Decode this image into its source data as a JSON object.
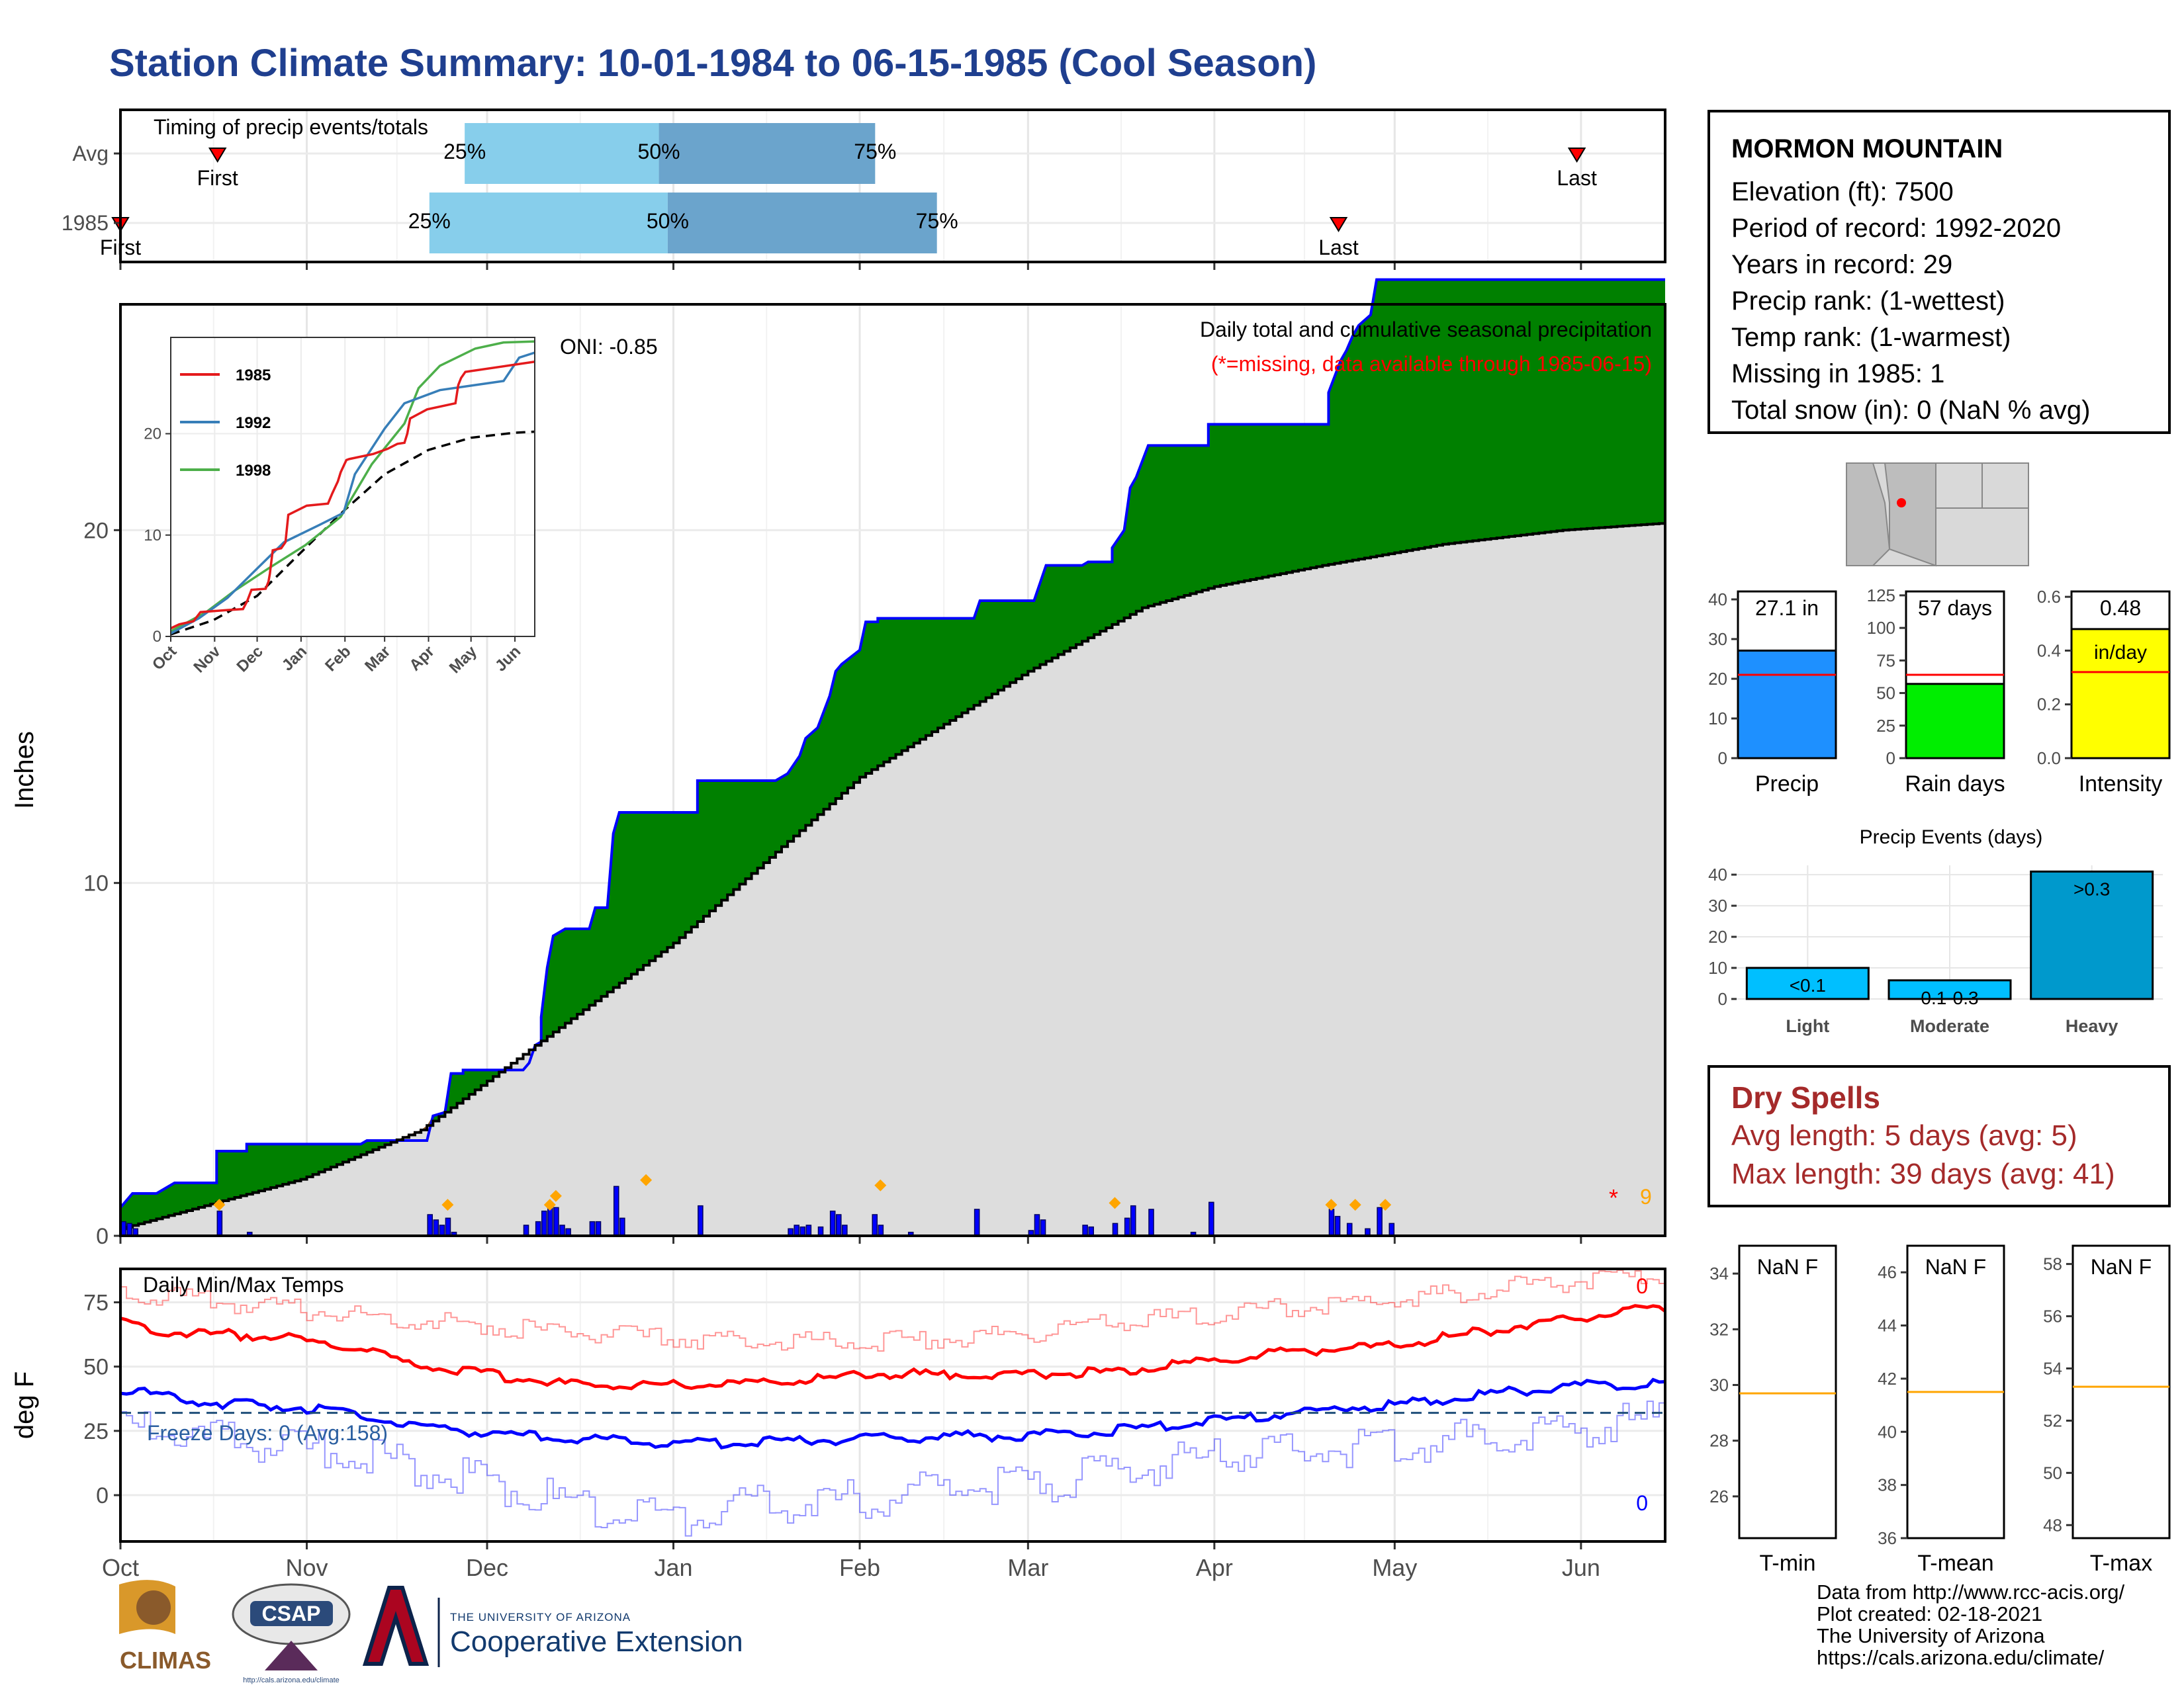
{
  "title": "Station Climate Summary: 10-01-1984 to 06-15-1985 (Cool Season)",
  "colors": {
    "title": "#1f3f8f",
    "cum_fill": "#008000",
    "deficit_fill": "#8B5A2B",
    "normal_fill": "#dddddd",
    "daily_bar": "#0000ff",
    "max_line": "#ff0000",
    "min_line": "#0000ff",
    "orange": "#ffa500",
    "dry": "#a52a2a"
  },
  "timing": {
    "title": "Timing of precip events/totals",
    "rows": [
      {
        "label": "Avg",
        "p25": "25%",
        "p50": "50%",
        "p75": "75%",
        "first": "First",
        "last": "Last",
        "x25": 78,
        "x50": 122,
        "x75": 171,
        "xfirst": 22,
        "xlast": 330
      },
      {
        "label": "1985",
        "p25": "25%",
        "p50": "50%",
        "p75": "75%",
        "first": "First",
        "last": "Last",
        "x25": 70,
        "x50": 124,
        "x75": 185,
        "xfirst": 0,
        "xlast": 276
      }
    ]
  },
  "month_labels": [
    "Oct",
    "Nov",
    "Dec",
    "Jan",
    "Feb",
    "Mar",
    "Apr",
    "May",
    "Jun"
  ],
  "month_starts": [
    0,
    31,
    61,
    92,
    123,
    151,
    182,
    212,
    243
  ],
  "precip_panel": {
    "ylabel": "Inches",
    "yticks": [
      0,
      10,
      20
    ],
    "ymax": 26.4,
    "caption": "Daily total and cumulative seasonal precipitation",
    "missing_note": "(*=missing, data available through 1985-06-15)",
    "oni": "ONI: -0.85",
    "missing_count": "9",
    "cumulative_steps": [
      [
        0,
        0.8
      ],
      [
        2,
        1.2
      ],
      [
        6,
        1.2
      ],
      [
        9,
        1.5
      ],
      [
        16,
        1.5
      ],
      [
        16,
        2.4
      ],
      [
        21,
        2.4
      ],
      [
        21,
        2.6
      ],
      [
        40,
        2.6
      ],
      [
        41,
        2.7
      ],
      [
        51,
        2.7
      ],
      [
        52,
        3.4
      ],
      [
        54,
        3.5
      ],
      [
        55,
        4.6
      ],
      [
        57,
        4.6
      ],
      [
        57,
        4.7
      ],
      [
        67,
        4.7
      ],
      [
        68,
        4.9
      ],
      [
        69,
        5.4
      ],
      [
        70,
        5.5
      ],
      [
        70,
        6.2
      ],
      [
        71,
        7.6
      ],
      [
        72,
        8.5
      ],
      [
        74,
        8.7
      ],
      [
        78,
        8.7
      ],
      [
        79,
        9.3
      ],
      [
        81,
        9.3
      ],
      [
        82,
        11.4
      ],
      [
        83,
        12.0
      ],
      [
        96,
        12.0
      ],
      [
        96,
        12.9
      ],
      [
        109,
        12.9
      ],
      [
        111,
        13.1
      ],
      [
        113,
        13.6
      ],
      [
        114,
        14.1
      ],
      [
        116,
        14.4
      ],
      [
        118,
        15.3
      ],
      [
        119,
        16.0
      ],
      [
        120,
        16.2
      ],
      [
        123,
        16.6
      ],
      [
        124,
        17.4
      ],
      [
        126,
        17.4
      ],
      [
        126,
        17.5
      ],
      [
        142,
        17.5
      ],
      [
        143,
        18.0
      ],
      [
        152,
        18.0
      ],
      [
        153,
        18.5
      ],
      [
        154,
        19.0
      ],
      [
        160,
        19.0
      ],
      [
        161,
        19.1
      ],
      [
        165,
        19.1
      ],
      [
        165,
        19.5
      ],
      [
        167,
        20.0
      ],
      [
        168,
        21.2
      ],
      [
        169,
        21.5
      ],
      [
        171,
        22.4
      ],
      [
        181,
        22.4
      ],
      [
        181,
        23.0
      ],
      [
        201,
        23.0
      ],
      [
        201,
        23.9
      ],
      [
        203,
        24.8
      ],
      [
        204,
        25.1
      ],
      [
        205,
        25.5
      ],
      [
        206,
        25.8
      ],
      [
        208,
        26.1
      ],
      [
        209,
        27.1
      ],
      [
        257,
        27.1
      ]
    ],
    "normal_points": [
      [
        0,
        0.2
      ],
      [
        30,
        1.6
      ],
      [
        50,
        3.0
      ],
      [
        92,
        8.3
      ],
      [
        123,
        13.0
      ],
      [
        151,
        16.0
      ],
      [
        170,
        17.8
      ],
      [
        182,
        18.4
      ],
      [
        200,
        19.0
      ],
      [
        220,
        19.6
      ],
      [
        240,
        20.0
      ],
      [
        257,
        20.2
      ]
    ],
    "daily_bars": [
      [
        0,
        0.4
      ],
      [
        1,
        0.35
      ],
      [
        2,
        0.2
      ],
      [
        16,
        0.7
      ],
      [
        21,
        0.1
      ],
      [
        51,
        0.6
      ],
      [
        52,
        0.45
      ],
      [
        53,
        0.3
      ],
      [
        54,
        0.5
      ],
      [
        55,
        0.1
      ],
      [
        67,
        0.3
      ],
      [
        69,
        0.4
      ],
      [
        70,
        0.7
      ],
      [
        71,
        0.95
      ],
      [
        72,
        0.8
      ],
      [
        73,
        0.3
      ],
      [
        74,
        0.2
      ],
      [
        78,
        0.4
      ],
      [
        79,
        0.4
      ],
      [
        82,
        1.4
      ],
      [
        83,
        0.5
      ],
      [
        96,
        0.85
      ],
      [
        111,
        0.2
      ],
      [
        112,
        0.3
      ],
      [
        113,
        0.25
      ],
      [
        114,
        0.3
      ],
      [
        116,
        0.25
      ],
      [
        118,
        0.7
      ],
      [
        119,
        0.6
      ],
      [
        120,
        0.3
      ],
      [
        125,
        0.6
      ],
      [
        126,
        0.3
      ],
      [
        131,
        0.1
      ],
      [
        142,
        0.75
      ],
      [
        151,
        0.15
      ],
      [
        152,
        0.6
      ],
      [
        153,
        0.45
      ],
      [
        160,
        0.3
      ],
      [
        161,
        0.25
      ],
      [
        165,
        0.35
      ],
      [
        167,
        0.5
      ],
      [
        168,
        0.85
      ],
      [
        171,
        0.75
      ],
      [
        178,
        0.1
      ],
      [
        181,
        0.95
      ],
      [
        201,
        0.75
      ],
      [
        202,
        0.55
      ],
      [
        204,
        0.35
      ],
      [
        207,
        0.2
      ],
      [
        209,
        0.8
      ],
      [
        211,
        0.35
      ]
    ],
    "orange_markers": [
      [
        16,
        0.88
      ],
      [
        54,
        0.88
      ],
      [
        71,
        0.88
      ],
      [
        72,
        1.13
      ],
      [
        87,
        1.58
      ],
      [
        126,
        1.43
      ],
      [
        165,
        0.93
      ],
      [
        201,
        0.88
      ],
      [
        205,
        0.88
      ],
      [
        210,
        0.88
      ]
    ]
  },
  "inset": {
    "legend": [
      {
        "name": "1985",
        "color": "#e41a1c"
      },
      {
        "name": "1992",
        "color": "#377eb8"
      },
      {
        "name": "1998",
        "color": "#4daf4a"
      }
    ],
    "yticks": [
      0,
      10,
      20
    ],
    "ymax": 29.5,
    "months": [
      "Oct",
      "Nov",
      "Dec",
      "Jan",
      "Feb",
      "Mar",
      "Apr",
      "May",
      "Jun"
    ],
    "series_1992": [
      [
        0,
        0.3
      ],
      [
        20,
        1.8
      ],
      [
        40,
        3.8
      ],
      [
        61,
        6.7
      ],
      [
        80,
        9.3
      ],
      [
        105,
        11.0
      ],
      [
        122,
        12.2
      ],
      [
        130,
        16.0
      ],
      [
        151,
        20.5
      ],
      [
        165,
        23.0
      ],
      [
        190,
        24.3
      ],
      [
        215,
        24.8
      ],
      [
        235,
        25.2
      ],
      [
        246,
        27.5
      ],
      [
        257,
        28.0
      ]
    ],
    "series_1998": [
      [
        0,
        0.5
      ],
      [
        25,
        2.4
      ],
      [
        45,
        4.5
      ],
      [
        70,
        6.8
      ],
      [
        95,
        9.0
      ],
      [
        120,
        11.8
      ],
      [
        142,
        17.0
      ],
      [
        165,
        21.0
      ],
      [
        175,
        24.5
      ],
      [
        190,
        26.7
      ],
      [
        215,
        28.4
      ],
      [
        235,
        29.0
      ],
      [
        257,
        29.1
      ]
    ],
    "normal_inset": [
      [
        0,
        0.2
      ],
      [
        30,
        1.6
      ],
      [
        61,
        4.0
      ],
      [
        92,
        8.3
      ],
      [
        123,
        12.5
      ],
      [
        151,
        16.0
      ],
      [
        182,
        18.4
      ],
      [
        212,
        19.6
      ],
      [
        243,
        20.1
      ],
      [
        257,
        20.2
      ]
    ]
  },
  "temp_panel": {
    "ylabel": "deg F",
    "yticks": [
      0,
      25,
      50,
      75
    ],
    "ymin": -18,
    "ymax": 88,
    "title": "Daily Min/Max Temps",
    "freeze_label": "Freeze Days: 0 (Avg:158)",
    "max_count": "0",
    "min_count": "0",
    "freeze_line": 32,
    "max_1985": [
      [
        0,
        67
      ],
      [
        10,
        63
      ],
      [
        25,
        62
      ],
      [
        40,
        57
      ],
      [
        50,
        50
      ],
      [
        61,
        47
      ],
      [
        75,
        43
      ],
      [
        92,
        43
      ],
      [
        110,
        44
      ],
      [
        125,
        47
      ],
      [
        140,
        47
      ],
      [
        151,
        47
      ],
      [
        165,
        48
      ],
      [
        182,
        52
      ],
      [
        195,
        56
      ],
      [
        212,
        58
      ],
      [
        230,
        65
      ],
      [
        245,
        70
      ],
      [
        257,
        73
      ]
    ],
    "min_1985": [
      [
        0,
        41
      ],
      [
        15,
        36
      ],
      [
        30,
        34
      ],
      [
        45,
        29
      ],
      [
        61,
        24
      ],
      [
        75,
        22
      ],
      [
        92,
        20
      ],
      [
        110,
        21
      ],
      [
        125,
        22
      ],
      [
        140,
        23
      ],
      [
        151,
        23
      ],
      [
        170,
        26
      ],
      [
        182,
        29
      ],
      [
        200,
        33
      ],
      [
        215,
        36
      ],
      [
        230,
        40
      ],
      [
        245,
        43
      ],
      [
        257,
        43
      ]
    ],
    "rec_max": [
      [
        0,
        79
      ],
      [
        20,
        74
      ],
      [
        40,
        70
      ],
      [
        60,
        66
      ],
      [
        75,
        63
      ],
      [
        92,
        61
      ],
      [
        110,
        60
      ],
      [
        130,
        60
      ],
      [
        150,
        63
      ],
      [
        170,
        68
      ],
      [
        190,
        72
      ],
      [
        212,
        76
      ],
      [
        235,
        82
      ],
      [
        257,
        85
      ]
    ],
    "rec_min": [
      [
        0,
        26
      ],
      [
        20,
        20
      ],
      [
        40,
        16
      ],
      [
        55,
        8
      ],
      [
        70,
        -1
      ],
      [
        85,
        -7
      ],
      [
        92,
        -10
      ],
      [
        105,
        -4
      ],
      [
        125,
        -1
      ],
      [
        140,
        3
      ],
      [
        151,
        4
      ],
      [
        165,
        9
      ],
      [
        182,
        15
      ],
      [
        200,
        17
      ],
      [
        215,
        20
      ],
      [
        235,
        24
      ],
      [
        257,
        30
      ]
    ]
  },
  "info_box": {
    "station": "MORMON MOUNTAIN",
    "lines": [
      "Elevation (ft): 7500",
      "Period of record: 1992-2020",
      "Years in record: 29",
      "Precip rank:  (1-wettest)",
      "Temp rank:  (1-warmest)",
      "Missing in 1985: 1",
      "Total snow (in): 0 (NaN % avg)"
    ]
  },
  "mini_bars": [
    {
      "label": "Precip",
      "value": 27.1,
      "value_label": "27.1 in",
      "avg": 21.0,
      "yticks": [
        0,
        10,
        20,
        30,
        40
      ],
      "ymax": 42,
      "color": "#1e90ff"
    },
    {
      "label": "Rain days",
      "value": 57,
      "value_label": "57 days",
      "avg": 64,
      "yticks": [
        0,
        25,
        50,
        75,
        100,
        125
      ],
      "ymax": 128,
      "color": "#00ee00"
    },
    {
      "label": "Intensity",
      "value": 0.48,
      "value_label": "0.48",
      "value_label2": "in/day",
      "avg": 0.32,
      "yticks": [
        0.0,
        0.2,
        0.4,
        0.6
      ],
      "ymax": 0.62,
      "color": "#ffff00"
    }
  ],
  "events": {
    "title": "Precip Events (days)",
    "categories": [
      "Light",
      "Moderate",
      "Heavy"
    ],
    "values": [
      10,
      6,
      41
    ],
    "bar_labels": [
      "<0.1",
      "0.1-0.3",
      ">0.3"
    ],
    "yticks": [
      0,
      10,
      20,
      30,
      40
    ],
    "ymax": 43
  },
  "dry_spells": {
    "title": "Dry Spells",
    "avg": "Avg length: 5 days (avg: 5)",
    "max": "Max length: 39 days (avg: 41)"
  },
  "temp_summary": [
    {
      "label": "T-min",
      "value": "NaN F",
      "avg": 29.7,
      "yticks": [
        26,
        28,
        30,
        32,
        34
      ],
      "ymin": 24.5,
      "ymax": 35
    },
    {
      "label": "T-mean",
      "value": "NaN F",
      "avg": 41.5,
      "yticks": [
        36,
        38,
        40,
        42,
        44,
        46
      ],
      "ymin": 36,
      "ymax": 47
    },
    {
      "label": "T-max",
      "value": "NaN F",
      "avg": 53.3,
      "yticks": [
        48,
        50,
        52,
        54,
        56,
        58
      ],
      "ymin": 47.5,
      "ymax": 58.7
    }
  ],
  "credits": [
    "Data from http://www.rcc-acis.org/",
    "Plot created: 02-18-2021",
    "The University of Arizona",
    "https://cals.arizona.edu/climate/"
  ],
  "logos": {
    "climas": "CLIMAS",
    "csap": "CSAP",
    "csap_url": "http://cals.arizona.edu/climate",
    "ua_small": "THE UNIVERSITY OF ARIZONA",
    "ua_big": "Cooperative Extension"
  }
}
